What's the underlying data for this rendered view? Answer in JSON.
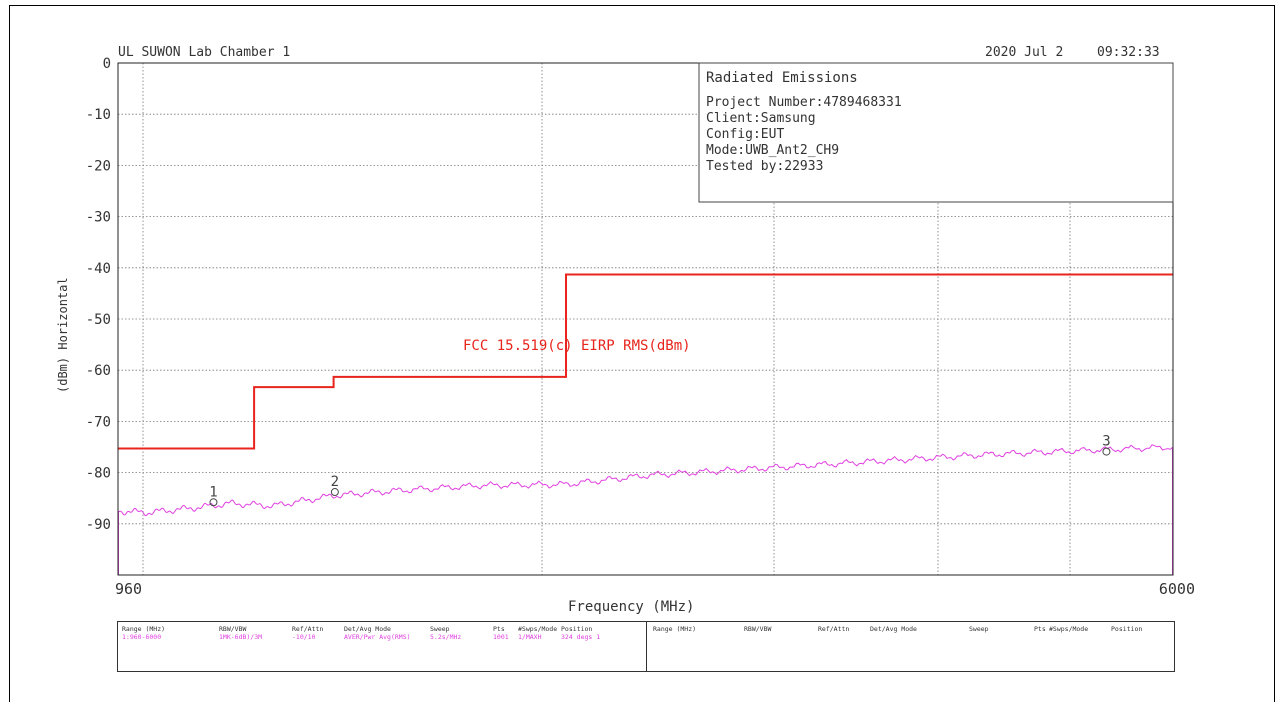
{
  "chart_data": {
    "type": "line",
    "lab_label": "UL SUWON Lab Chamber 1",
    "date": "2020 Jul 2",
    "time": "09:32:33",
    "xlabel": "Frequency (MHz)",
    "ylabel": "(dBm) Horizontal",
    "xlim": [
      960,
      6000
    ],
    "ylim": [
      -100,
      0
    ],
    "x_tick_labels": [
      "960",
      "6000"
    ],
    "y_ticks": [
      0,
      -10,
      -20,
      -30,
      -40,
      -50,
      -60,
      -70,
      -80,
      -90
    ],
    "y_tick_labels": [
      "0",
      "-10",
      "-20",
      "-30",
      "-40",
      "-50",
      "-60",
      "-70",
      "-80",
      "-90"
    ],
    "grid": true,
    "info_box": {
      "title": "Radiated Emissions",
      "lines": [
        "Project Number:4789468331",
        "Client:Samsung",
        "Config:EUT",
        "Mode:UWB_Ant2_CH9",
        "Tested by:22933"
      ]
    },
    "limit_label": "FCC 15.519(c) EIRP RMS(dBm)",
    "series": [
      {
        "name": "FCC 15.519(c) EIRP RMS(dBm)",
        "color": "#e8241c",
        "step": true,
        "x": [
          960,
          1610,
          1610,
          1990,
          1990,
          3100,
          3100,
          6000
        ],
        "y": [
          -75.3,
          -75.3,
          -63.3,
          -63.3,
          -61.3,
          -61.3,
          -41.3,
          -41.3
        ]
      },
      {
        "name": "measurement",
        "color": "#e040e0",
        "x": [
          960,
          1100,
          1300,
          1500,
          1700,
          1990,
          2300,
          2700,
          3100,
          3500,
          3900,
          4300,
          4700,
          5100,
          5500,
          6000
        ],
        "y": [
          -87.5,
          -87.8,
          -87.0,
          -86.0,
          -86.5,
          -84.5,
          -83.5,
          -82.5,
          -82.3,
          -80.5,
          -79.5,
          -78.5,
          -77.5,
          -76.5,
          -75.8,
          -75.0
        ]
      }
    ],
    "markers": [
      {
        "label": "1",
        "x": 1416,
        "y": -85.8
      },
      {
        "label": "2",
        "x": 1996,
        "y": -83.8
      },
      {
        "label": "3",
        "x": 5682,
        "y": -75.9
      }
    ]
  },
  "settings_table": {
    "headers_left": [
      "Range (MHz)",
      "RBW/VBW",
      "Ref/Attn",
      "Det/Avg Mode",
      "Sweep",
      "Pts",
      "#Swps/Mode",
      "Position"
    ],
    "values_left": [
      "1:960-6000",
      "1MK-6dB)/3M",
      "-10/10",
      "AVER/Pwr Avg(RMS)",
      "5.2s/MHz",
      "1001",
      "1/MAXH",
      "324 degs 1"
    ],
    "headers_right": [
      "Range (MHz)",
      "RBW/VBW",
      "Ref/Attn",
      "Det/Avg Mode",
      "Sweep",
      "Pts",
      "#Swps/Mode",
      "Position"
    ]
  }
}
